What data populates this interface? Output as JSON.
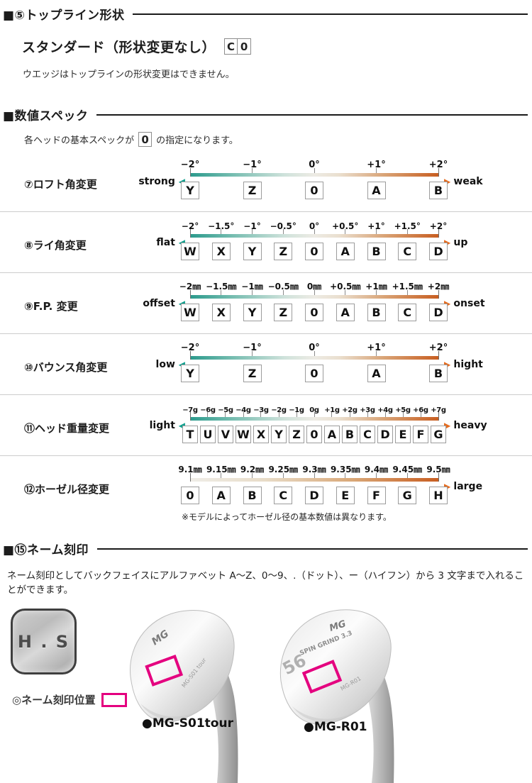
{
  "topline": {
    "title": "■⑤トップライン形状",
    "subtitle": "スタンダード（形状変更なし）",
    "codes": [
      "C",
      "0"
    ],
    "note": "ウエッジはトップラインの形状変更はできません。"
  },
  "spec": {
    "title": "■数値スペック",
    "intro_before": "各ヘッドの基本スペックが",
    "intro_box": "0",
    "intro_after": "の指定になります。",
    "scales": [
      {
        "label": "⑦ロフト角変更",
        "left": "strong",
        "right": "weak",
        "style": "dual",
        "ticks": [
          "−2°",
          "−1°",
          "0°",
          "+1°",
          "+2°"
        ],
        "letters": [
          "Y",
          "Z",
          "0",
          "A",
          "B"
        ]
      },
      {
        "label": "⑧ライ角変更",
        "left": "flat",
        "right": "up",
        "style": "dual",
        "ticks": [
          "−2°",
          "−1.5°",
          "−1°",
          "−0.5°",
          "0°",
          "+0.5°",
          "+1°",
          "+1.5°",
          "+2°"
        ],
        "letters": [
          "W",
          "X",
          "Y",
          "Z",
          "0",
          "A",
          "B",
          "C",
          "D"
        ]
      },
      {
        "label": "⑨F.P. 変更",
        "left": "offset",
        "right": "onset",
        "style": "dual",
        "ticks": [
          "−2㎜",
          "−1.5㎜",
          "−1㎜",
          "−0.5㎜",
          "0㎜",
          "+0.5㎜",
          "+1㎜",
          "+1.5㎜",
          "+2㎜"
        ],
        "letters": [
          "W",
          "X",
          "Y",
          "Z",
          "0",
          "A",
          "B",
          "C",
          "D"
        ]
      },
      {
        "label": "⑩バウンス角変更",
        "left": "low",
        "right": "hight",
        "style": "dual",
        "ticks": [
          "−2°",
          "−1°",
          "0°",
          "+1°",
          "+2°"
        ],
        "letters": [
          "Y",
          "Z",
          "0",
          "A",
          "B"
        ]
      },
      {
        "label": "⑪ヘッド重量変更",
        "left": "light",
        "right": "heavy",
        "style": "dual",
        "ticks": [
          "−7g",
          "−6g",
          "−5g",
          "−4g",
          "−3g",
          "−2g",
          "−1g",
          "0g",
          "+1g",
          "+2g",
          "+3g",
          "+4g",
          "+5g",
          "+6g",
          "+7g"
        ],
        "letters": [
          "T",
          "U",
          "V",
          "W",
          "X",
          "Y",
          "Z",
          "0",
          "A",
          "B",
          "C",
          "D",
          "E",
          "F",
          "G"
        ]
      },
      {
        "label": "⑫ホーゼル径変更",
        "left": null,
        "right": "large",
        "style": "orange",
        "ticks": [
          "9.1㎜",
          "9.15㎜",
          "9.2㎜",
          "9.25㎜",
          "9.3㎜",
          "9.35㎜",
          "9.4㎜",
          "9.45㎜",
          "9.5㎜"
        ],
        "letters": [
          "0",
          "A",
          "B",
          "C",
          "D",
          "E",
          "F",
          "G",
          "H"
        ]
      }
    ],
    "hosel_note": "※モデルによってホーゼル径の基本数値は異なります。"
  },
  "engraving": {
    "title": "■⑮ネーム刻印",
    "description": "ネーム刻印としてバックフェイスにアルファベット A～Z、0～9、.（ドット）、ー（ハイフン）から 3 文字まで入れることができます。",
    "sample_plate_text": "H . S",
    "position_label": "◎ネーム刻印位置",
    "clubs": [
      {
        "label": "●MG-S01tour",
        "face_marks": [
          "MG",
          "MG-S01 tour"
        ]
      },
      {
        "label": "●MG-R01",
        "face_marks": [
          "MG",
          "SPIN GRIND 3.3",
          "56",
          "MG-R01"
        ]
      }
    ]
  },
  "colors": {
    "teal": "#13a18f",
    "orange": "#c85e21",
    "magenta": "#e4007f"
  }
}
